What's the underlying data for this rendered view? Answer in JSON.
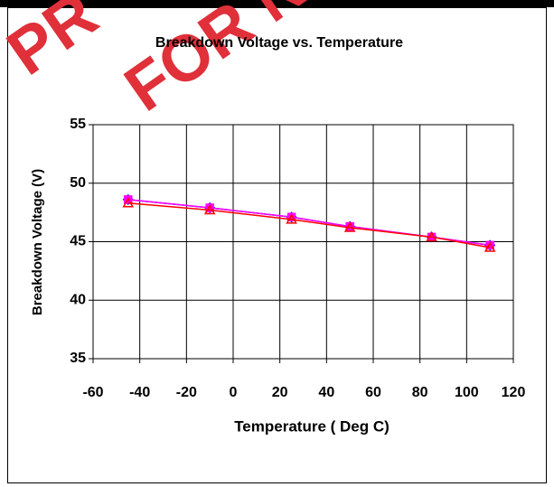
{
  "chart_data": {
    "type": "line",
    "title": "Breakdown Voltage vs. Temperature",
    "x_label": "Temperature ( Deg C)",
    "y_label": "Breakdown Voltage (V)",
    "watermark": [
      "PR",
      "FOR N"
    ],
    "x": [
      -45,
      -10,
      25,
      50,
      85,
      110
    ],
    "series": [
      {
        "color": "#0000ff",
        "marker": "diamond",
        "values": [
          48.6,
          47.9,
          47.1,
          46.3,
          45.4,
          44.7
        ]
      },
      {
        "color": "#ff00ff",
        "marker": "square",
        "values": [
          48.6,
          47.9,
          47.1,
          46.3,
          45.4,
          44.7
        ]
      },
      {
        "color": "#ff0000",
        "marker": "triangle",
        "values": [
          48.3,
          47.7,
          46.9,
          46.2,
          45.4,
          44.5
        ]
      }
    ],
    "xlim": [
      -60,
      120
    ],
    "xticks": [
      -60,
      -40,
      -20,
      0,
      20,
      40,
      60,
      80,
      100,
      120
    ],
    "ylim": [
      35,
      55
    ],
    "yticks": [
      35,
      40,
      45,
      50,
      55
    ],
    "grid": true
  }
}
